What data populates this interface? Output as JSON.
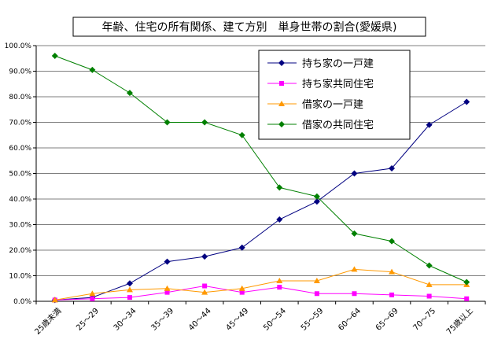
{
  "chart_data": {
    "type": "line",
    "title": "年齢、住宅の所有関係、建て方別　単身世帯の割合(愛媛県)",
    "categories": [
      "25歳未満",
      "25～29",
      "30～34",
      "35～39",
      "40～44",
      "45～49",
      "50～54",
      "55～59",
      "60～64",
      "65～69",
      "70～75",
      "75歳以上"
    ],
    "ylim": [
      0,
      100
    ],
    "yticks": [
      "0.0%",
      "10.0%",
      "20.0%",
      "30.0%",
      "40.0%",
      "50.0%",
      "60.0%",
      "70.0%",
      "80.0%",
      "90.0%",
      "100.0%"
    ],
    "grid": true,
    "legend_position": "top-right",
    "series": [
      {
        "name": "持ち家の一戸建",
        "color": "#000080",
        "marker": "diamond",
        "values": [
          0.5,
          1.5,
          7.0,
          15.5,
          17.5,
          21.0,
          32.0,
          39.0,
          50.0,
          52.0,
          69.0,
          78.0
        ]
      },
      {
        "name": "持ち家共同住宅",
        "color": "#ff00ff",
        "marker": "square",
        "values": [
          0.5,
          1.0,
          1.5,
          3.5,
          6.0,
          3.5,
          5.5,
          3.0,
          3.0,
          2.5,
          2.0,
          1.0
        ]
      },
      {
        "name": "借家の一戸建",
        "color": "#ff9900",
        "marker": "triangle",
        "values": [
          0.5,
          3.0,
          4.5,
          5.0,
          3.5,
          5.0,
          8.0,
          8.0,
          12.5,
          11.5,
          6.5,
          6.5
        ]
      },
      {
        "name": "借家の共同住宅",
        "color": "#008000",
        "marker": "diamond",
        "values": [
          96.0,
          90.5,
          81.5,
          70.0,
          70.0,
          65.0,
          44.5,
          41.0,
          26.5,
          23.5,
          14.0,
          7.5
        ]
      }
    ]
  }
}
